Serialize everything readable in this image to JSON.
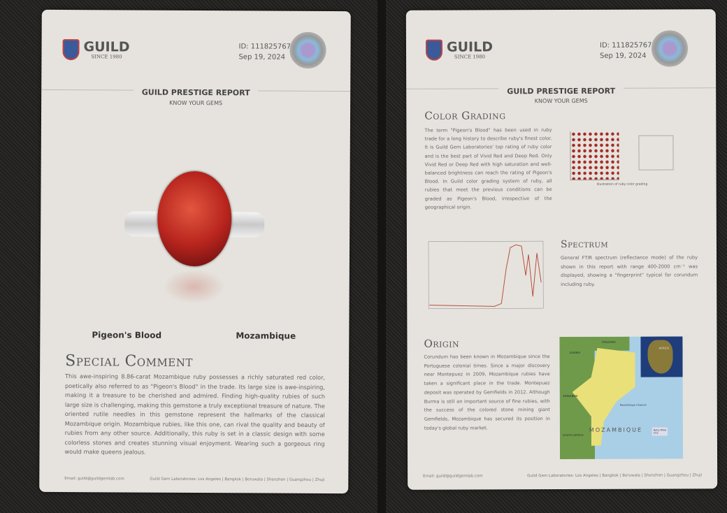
{
  "report": {
    "brand": "GUILD",
    "since": "SINCE 1980",
    "id": "ID: 1118257678",
    "date": "Sep 19, 2024",
    "title": "GUILD PRESTIGE REPORT",
    "subtitle": "KNOW YOUR GEMS"
  },
  "left": {
    "color_grade": "Pigeon's Blood",
    "origin": "Mozambique",
    "comment_heading": "Special Comment",
    "comment": "This awe-inspiring 8.86-carat Mozambique ruby possesses a richly saturated red color, poetically also referred to as \"Pigeon's Blood\" in the trade. Its large size is awe-inspiring, making it a treasure to be cherished and admired. Finding high-quality rubies of such large size is challenging, making this gemstone a truly exceptional treasure of nature. The oriented rutile needles in this gemstone represent the hallmarks of the classical Mozambique origin. Mozambique rubies, like this one, can rival the quality and beauty of rubies from any other source. Additionally, this ruby is set in a classic design with some colorless stones and creates stunning visual enjoyment. Wearing such a gorgeous ring would make queens jealous."
  },
  "right": {
    "color_heading": "Color Grading",
    "color_text": "The term \"Pigeon's Blood\" has been used in ruby trade for a long history to describe ruby's finest color. It is Guild Gem Laboratories' top rating of ruby color and is the best part of Vivid Red and Deep Red. Only Vivid Red or Deep Red with high saturation and well-balanced brightness can reach the rating of Pigeon's Blood. In Guild color grading system of ruby, all rubies that meet the previous conditions can be graded as Pigeon's Blood, irrespective of the geographical origin.",
    "color_caption": "Illustration of ruby color grading",
    "spectrum_heading": "Spectrum",
    "spectrum_text": "General FTIR spectrum (reflectance mode) of the ruby shown in this report with range 400-2000 cm⁻¹ was displayed, showing a \"fingerprint\" typical for corundum including ruby.",
    "origin_heading": "Origin",
    "origin_text": "Corundum has been known in Mozambique since the Portuguese colonial times. Since a major discovery near Montepuez in 2009, Mozambique rubies have taken a significant place in the trade. Montepuez deposit was operated by Gemfields in 2012. Although Burma is still an important source of fine rubies, with the success of the colored stone mining giant Gemfields, Mozambique has secured its position in today's global ruby market.",
    "map": {
      "country": "MOZAMBIQUE",
      "labels": [
        "TANZANIA",
        "ZAMBIA",
        "ZIMBABWE",
        "SOUTH AFRICA",
        "Mozambique Channel",
        "AFRICA"
      ],
      "legend": [
        "Ruby Mine",
        "City"
      ]
    }
  },
  "footer": {
    "email": "Email: guild@guildgemlab.com",
    "labs": "Guild Gem Laboratories: Los Angeles | Bangkok | Boruwala | Shenzhen | Guangzhou | Zhuji"
  },
  "colors": {
    "ruby": "#b8251e",
    "map_land": "#e9e07a",
    "map_sea": "#a9cfe6",
    "map_other": "#6f9a4a"
  }
}
